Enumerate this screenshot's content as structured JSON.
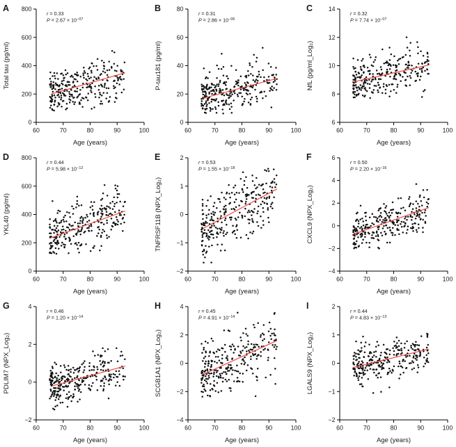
{
  "figure_title": "",
  "colors": {
    "trend_line": "#ee4b43",
    "point": "#111111",
    "axis": "#000000",
    "background": "#ffffff"
  },
  "chart_data": [
    {
      "type": "scatter",
      "label": "A",
      "xlabel": "Age (years)",
      "ylabel": "Total tau (pg/ml)",
      "stats": {
        "r": "0.33",
        "p_mantissa": "2.67",
        "p_exponent": "−07"
      },
      "xlim": [
        60,
        100
      ],
      "xticks": [
        60,
        70,
        80,
        90,
        100
      ],
      "ylim": [
        0,
        800
      ],
      "yticks": [
        0,
        200,
        400,
        600,
        800
      ],
      "grid": false,
      "trend": {
        "x1": 65.5,
        "y1": 200,
        "x2": 93,
        "y2": 350
      },
      "scatter": {
        "n": 290,
        "seed": 101,
        "sigma": 88,
        "x_min": 65,
        "x_max": 93,
        "x_skew": 1.35,
        "y_clamp": [
          80,
          710
        ]
      }
    },
    {
      "type": "scatter",
      "label": "B",
      "xlabel": "Age (years)",
      "ylabel": "P-tau181 (pg/ml)",
      "stats": {
        "r": "0.31",
        "p_mantissa": "2.86",
        "p_exponent": "−06"
      },
      "xlim": [
        60,
        100
      ],
      "xticks": [
        60,
        70,
        80,
        90,
        100
      ],
      "ylim": [
        0,
        80
      ],
      "yticks": [
        0,
        20,
        40,
        60,
        80
      ],
      "grid": false,
      "trend": {
        "x1": 65.5,
        "y1": 17,
        "x2": 93,
        "y2": 31
      },
      "scatter": {
        "n": 290,
        "seed": 202,
        "sigma": 9,
        "x_min": 65,
        "x_max": 93,
        "x_skew": 1.35,
        "y_clamp": [
          6,
          73
        ]
      }
    },
    {
      "type": "scatter",
      "label": "C",
      "xlabel": "Age (years)",
      "ylabel": "NfL (pg/ml_Log₂)",
      "stats": {
        "r": "0.32",
        "p_mantissa": "7.74",
        "p_exponent": "−07"
      },
      "xlim": [
        60,
        100
      ],
      "xticks": [
        60,
        70,
        80,
        90,
        100
      ],
      "ylim": [
        6,
        14
      ],
      "yticks": [
        6,
        8,
        10,
        12,
        14
      ],
      "grid": false,
      "trend": {
        "x1": 65,
        "y1": 8.85,
        "x2": 93,
        "y2": 10.05
      },
      "scatter": {
        "n": 285,
        "seed": 303,
        "sigma": 0.78,
        "x_min": 65,
        "x_max": 93,
        "x_skew": 1.35,
        "y_clamp": [
          7.7,
          13.0
        ]
      }
    },
    {
      "type": "scatter",
      "label": "D",
      "xlabel": "Age (years)",
      "ylabel": "YKL40 (pg/ml)",
      "stats": {
        "r": "0.44",
        "p_mantissa": "5.98",
        "p_exponent": "−12"
      },
      "xlim": [
        60,
        100
      ],
      "xticks": [
        60,
        70,
        80,
        90,
        100
      ],
      "ylim": [
        0,
        800
      ],
      "yticks": [
        0,
        200,
        400,
        600,
        800
      ],
      "grid": false,
      "trend": {
        "x1": 65.5,
        "y1": 235,
        "x2": 93,
        "y2": 425
      },
      "scatter": {
        "n": 285,
        "seed": 404,
        "sigma": 98,
        "x_min": 65,
        "x_max": 93,
        "x_skew": 1.35,
        "y_clamp": [
          120,
          620
        ]
      }
    },
    {
      "type": "scatter",
      "label": "E",
      "xlabel": "Age (years)",
      "ylabel": "TNFRSF11B (NPX_Log₂)",
      "stats": {
        "r": "0.53",
        "p_mantissa": "1.55",
        "p_exponent": "−18"
      },
      "xlim": [
        60,
        100
      ],
      "xticks": [
        60,
        70,
        80,
        90,
        100
      ],
      "ylim": [
        -2,
        2
      ],
      "yticks": [
        -2,
        -1,
        0,
        1,
        2
      ],
      "grid": false,
      "trend": {
        "x1": 65.5,
        "y1": -0.5,
        "x2": 93,
        "y2": 0.9
      },
      "scatter": {
        "n": 290,
        "seed": 505,
        "sigma": 0.56,
        "x_min": 65,
        "x_max": 93,
        "x_skew": 1.35,
        "y_clamp": [
          -1.8,
          1.65
        ]
      }
    },
    {
      "type": "scatter",
      "label": "F",
      "xlabel": "Age (years)",
      "ylabel": "CXCL9 (NPX_Log₂)",
      "stats": {
        "r": "0.50",
        "p_mantissa": "2.20",
        "p_exponent": "−16"
      },
      "xlim": [
        60,
        100
      ],
      "xticks": [
        60,
        70,
        80,
        90,
        100
      ],
      "ylim": [
        -4,
        6
      ],
      "yticks": [
        -4,
        -2,
        0,
        2,
        4,
        6
      ],
      "grid": false,
      "trend": {
        "x1": 65,
        "y1": -0.75,
        "x2": 93,
        "y2": 1.6
      },
      "scatter": {
        "n": 290,
        "seed": 606,
        "sigma": 0.92,
        "x_min": 65,
        "x_max": 93,
        "x_skew": 1.35,
        "y_clamp": [
          -2.8,
          4.95
        ]
      }
    },
    {
      "type": "scatter",
      "label": "G",
      "xlabel": "Age (years)",
      "ylabel": "PDLIM7 (NPX_Log₂)",
      "stats": {
        "r": "0.46",
        "p_mantissa": "1.20",
        "p_exponent": "−14"
      },
      "xlim": [
        60,
        100
      ],
      "xticks": [
        60,
        70,
        80,
        90,
        100
      ],
      "ylim": [
        -2,
        4
      ],
      "yticks": [
        -2,
        0,
        2,
        4
      ],
      "grid": false,
      "trend": {
        "x1": 66,
        "y1": -0.2,
        "x2": 93,
        "y2": 0.85
      },
      "scatter": {
        "n": 290,
        "seed": 707,
        "sigma": 0.55,
        "x_min": 65,
        "x_max": 93,
        "x_skew": 1.35,
        "y_clamp": [
          -1.5,
          2.6
        ]
      }
    },
    {
      "type": "scatter",
      "label": "H",
      "xlabel": "Age (years)",
      "ylabel": "SCGB1A1 (NPX_Log₂)",
      "stats": {
        "r": "0.45",
        "p_mantissa": "4.91",
        "p_exponent": "−14"
      },
      "xlim": [
        60,
        100
      ],
      "xticks": [
        60,
        70,
        80,
        90,
        100
      ],
      "ylim": [
        -4,
        4
      ],
      "yticks": [
        -4,
        -2,
        0,
        2,
        4
      ],
      "grid": false,
      "trend": {
        "x1": 65.5,
        "y1": -0.8,
        "x2": 93,
        "y2": 1.6
      },
      "scatter": {
        "n": 290,
        "seed": 808,
        "sigma": 1.02,
        "x_min": 65,
        "x_max": 93,
        "x_skew": 1.35,
        "y_clamp": [
          -3.0,
          3.9
        ]
      }
    },
    {
      "type": "scatter",
      "label": "I",
      "xlabel": "Age (years)",
      "ylabel": "LGALS9 (NPX_Log₂)",
      "stats": {
        "r": "0.44",
        "p_mantissa": "4.83",
        "p_exponent": "−13"
      },
      "xlim": [
        60,
        100
      ],
      "xticks": [
        60,
        70,
        80,
        90,
        100
      ],
      "ylim": [
        -2,
        2
      ],
      "yticks": [
        -2,
        -1,
        0,
        1,
        2
      ],
      "grid": false,
      "trend": {
        "x1": 65,
        "y1": -0.15,
        "x2": 93,
        "y2": 0.5
      },
      "scatter": {
        "n": 285,
        "seed": 909,
        "sigma": 0.37,
        "x_min": 65,
        "x_max": 93,
        "x_skew": 1.35,
        "y_clamp": [
          -1.05,
          1.25
        ]
      }
    }
  ]
}
